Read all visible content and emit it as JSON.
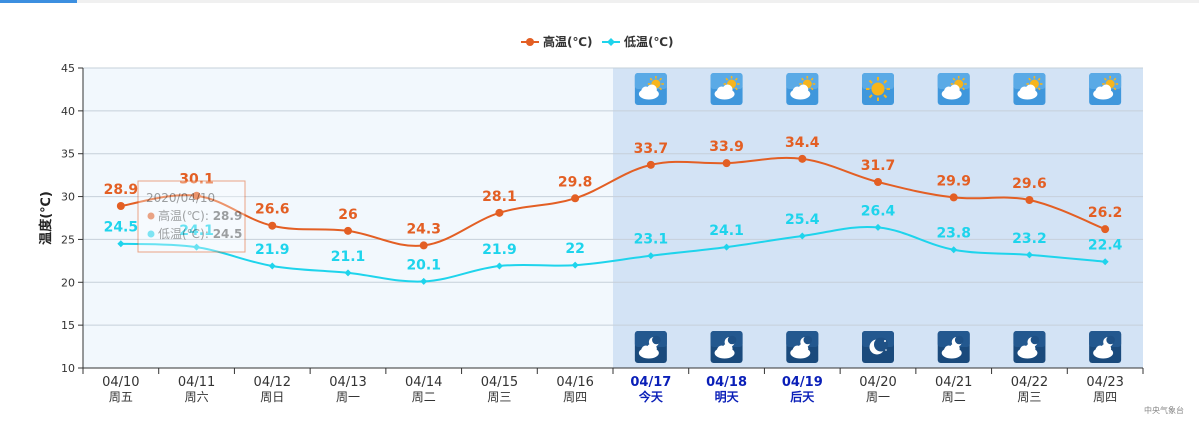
{
  "chart_data": {
    "type": "line",
    "title": "",
    "ylabel": "温度(℃)",
    "ylim": [
      10,
      45
    ],
    "yticks": [
      10,
      15,
      20,
      25,
      30,
      35,
      40,
      45
    ],
    "grid": true,
    "legend_position": "top-center",
    "categories": [
      "04/10",
      "04/11",
      "04/12",
      "04/13",
      "04/14",
      "04/15",
      "04/16",
      "04/17",
      "04/18",
      "04/19",
      "04/20",
      "04/21",
      "04/22",
      "04/23"
    ],
    "weekdays": [
      "周五",
      "周六",
      "周日",
      "周一",
      "周二",
      "周三",
      "周四",
      "今天",
      "明天",
      "后天",
      "周一",
      "周二",
      "周三",
      "周四"
    ],
    "highlight_labels": [
      7,
      8,
      9
    ],
    "forecast_start_index": 7,
    "series": [
      {
        "name": "高温(℃)",
        "color": "#e35f24",
        "values": [
          28.9,
          30.1,
          26.6,
          26,
          24.3,
          28.1,
          29.8,
          33.7,
          33.9,
          34.4,
          31.7,
          29.9,
          29.6,
          26.2
        ]
      },
      {
        "name": "低温(℃)",
        "color": "#1ed4ec",
        "values": [
          24.5,
          24.1,
          21.9,
          21.1,
          20.1,
          21.9,
          22,
          23.1,
          24.1,
          25.4,
          26.4,
          23.8,
          23.2,
          22.4
        ]
      }
    ],
    "day_icons": [
      "partly-cloudy-day-icon",
      "partly-cloudy-day-icon",
      "partly-cloudy-day-icon",
      "sunny-icon",
      "partly-cloudy-day-icon",
      "partly-cloudy-day-icon",
      "partly-cloudy-day-icon"
    ],
    "night_icons": [
      "cloudy-night-icon",
      "cloudy-night-icon",
      "cloudy-night-icon",
      "clear-night-icon",
      "cloudy-night-icon",
      "cloudy-night-icon",
      "cloudy-night-icon"
    ],
    "tooltip": {
      "date": "2020/04/10",
      "rows": [
        {
          "label": "高温(℃): ",
          "value": "28.9",
          "color": "#e35f24"
        },
        {
          "label": "低温(℃): ",
          "value": "24.5",
          "color": "#1ed4ec"
        }
      ]
    },
    "credit": "中央气象台"
  }
}
